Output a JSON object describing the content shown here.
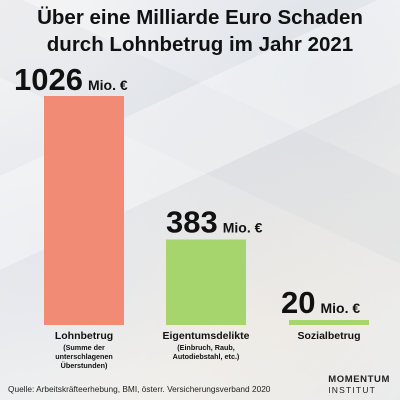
{
  "title_line1": "Über eine Milliarde Euro Schaden",
  "title_line2": "durch Lohnbetrug im Jahr 2021",
  "unit": "Mio. €",
  "chart_data": {
    "type": "bar",
    "categories": [
      "Lohnbetrug",
      "Eigentumsdelikte",
      "Sozialbetrug"
    ],
    "category_subtitles": [
      [
        "(Summe der",
        "unterschlagenen",
        "Überstunden)"
      ],
      [
        "(Einbruch, Raub,",
        "Autodiebstahl, etc.)"
      ],
      []
    ],
    "values": [
      1026,
      383,
      20
    ],
    "value_labels": [
      "1026",
      "383",
      "20"
    ],
    "colors": [
      "#f28b76",
      "#a5d56c",
      "#a5d56c"
    ],
    "ylim": [
      0,
      1026
    ],
    "grid": false
  },
  "source": "Quelle: Arbeitskräfteerhebung, BMI, österr. Versicherungsverband 2020",
  "brand_line1": "MOMENTUM",
  "brand_line2": "INSTITUT"
}
